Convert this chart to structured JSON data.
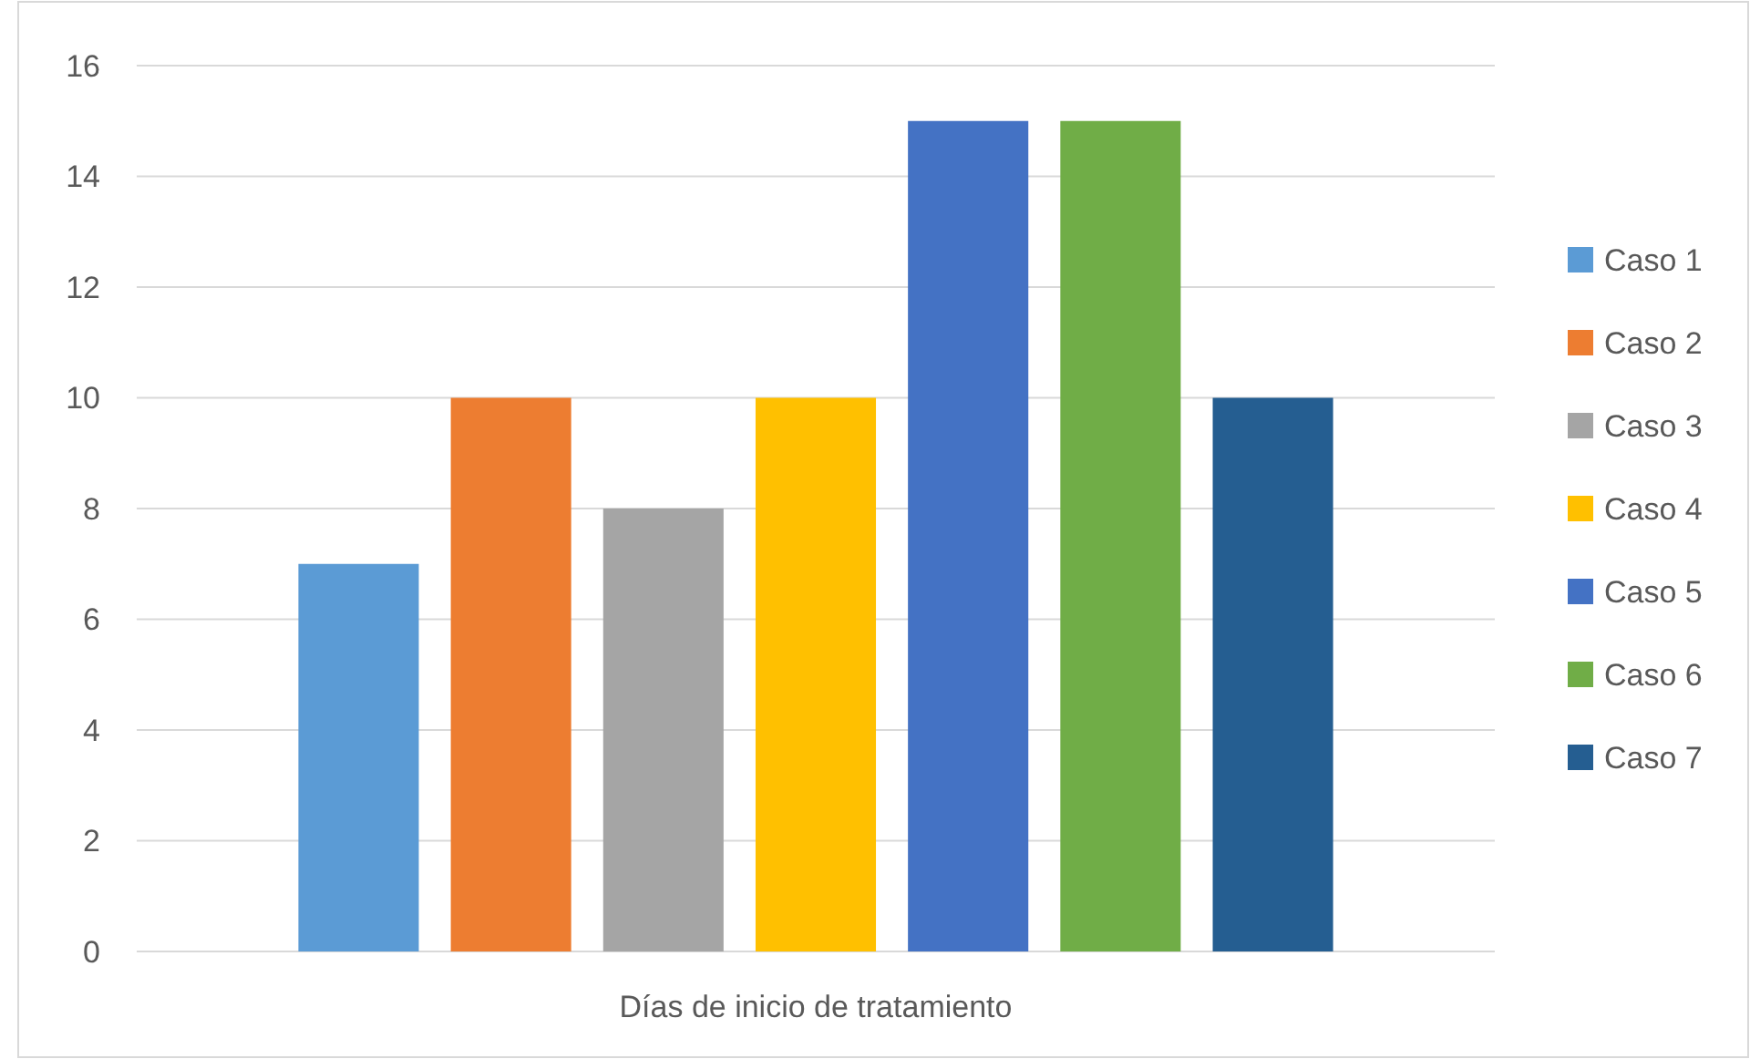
{
  "chart_data": {
    "type": "bar",
    "categories": [
      "Días de inicio de tratamiento"
    ],
    "series": [
      {
        "name": "Caso 1",
        "color": "#5b9bd5",
        "values": [
          7
        ]
      },
      {
        "name": "Caso 2",
        "color": "#ed7d31",
        "values": [
          10
        ]
      },
      {
        "name": "Caso 3",
        "color": "#a5a5a5",
        "values": [
          8
        ]
      },
      {
        "name": "Caso 4",
        "color": "#ffc000",
        "values": [
          10
        ]
      },
      {
        "name": "Caso 5",
        "color": "#4472c4",
        "values": [
          15
        ]
      },
      {
        "name": "Caso 6",
        "color": "#70ad47",
        "values": [
          15
        ]
      },
      {
        "name": "Caso 7",
        "color": "#255e91",
        "values": [
          10
        ]
      }
    ],
    "ylim": [
      0,
      16
    ],
    "yticks": [
      0,
      2,
      4,
      6,
      8,
      10,
      12,
      14,
      16
    ],
    "grid": "y",
    "legend": "right"
  }
}
